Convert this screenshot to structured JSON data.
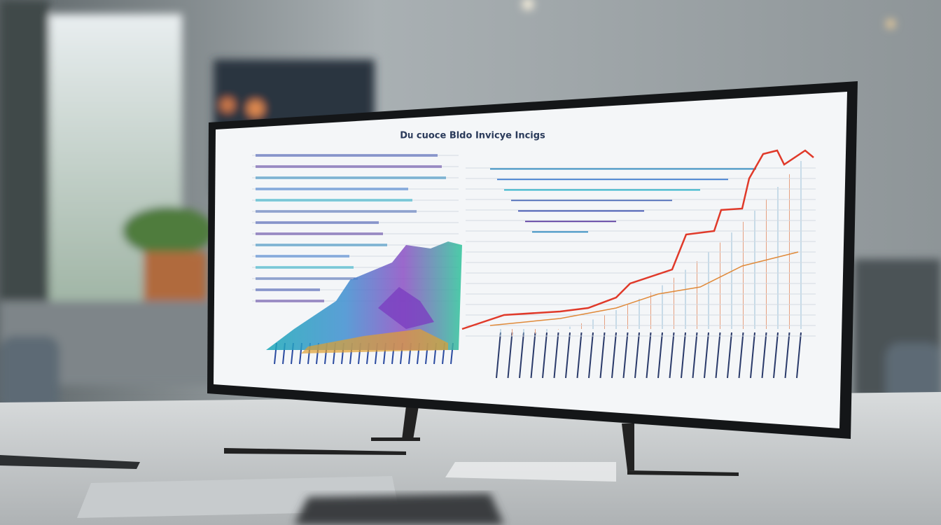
{
  "screen": {
    "title": "Dս cuoce Bldo Invicye Incigs"
  }
}
